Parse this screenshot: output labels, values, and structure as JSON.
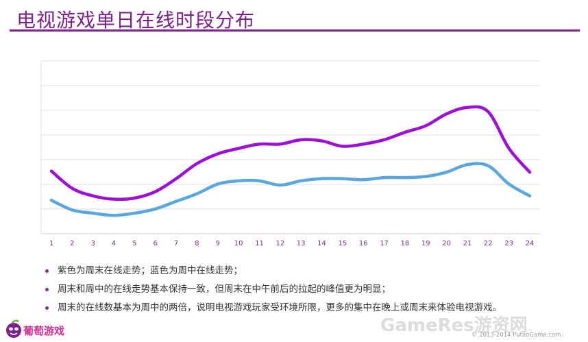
{
  "slide": {
    "title": "电视游戏单日在线时段分布",
    "bullets": [
      "紫色为周末在线走势；蓝色为周中在线走势；",
      "周末和周中的在线走势基本保持一致，但周末在中午前后的拉起的峰值更为明显；",
      "周末的在线数基本为周中的两倍，说明电视游戏玩家受环境所限，更多的集中在晚上或周末来体验电视游戏。"
    ],
    "logo_text": "葡萄游戏",
    "watermark": "GameRes游资网",
    "copyright": "© 2013-2014 PutaoGame.com"
  },
  "colors": {
    "title": "#7d1f8c",
    "weekend": "#9b0fd6",
    "weekday": "#5aa7e0",
    "grid": "#dedede",
    "tick": "#7a2a8a"
  },
  "chart_data": {
    "type": "line",
    "x": [
      1,
      2,
      3,
      4,
      5,
      6,
      7,
      8,
      9,
      10,
      11,
      12,
      13,
      14,
      15,
      16,
      17,
      18,
      19,
      20,
      21,
      22,
      23,
      24
    ],
    "ylim": [
      0,
      8
    ],
    "grid": true,
    "series": [
      {
        "key": "weekend",
        "values": [
          2.9,
          2.1,
          1.75,
          1.6,
          1.65,
          1.95,
          2.55,
          3.25,
          3.7,
          3.95,
          4.15,
          4.15,
          4.35,
          4.3,
          4.05,
          4.15,
          4.35,
          4.7,
          5.0,
          5.55,
          5.85,
          5.65,
          3.95,
          2.85
        ]
      },
      {
        "key": "weekday",
        "values": [
          1.55,
          1.1,
          0.95,
          0.85,
          0.95,
          1.15,
          1.5,
          1.85,
          2.3,
          2.45,
          2.45,
          2.25,
          2.45,
          2.55,
          2.55,
          2.5,
          2.6,
          2.6,
          2.65,
          2.85,
          3.2,
          3.15,
          2.3,
          1.75
        ]
      }
    ]
  }
}
